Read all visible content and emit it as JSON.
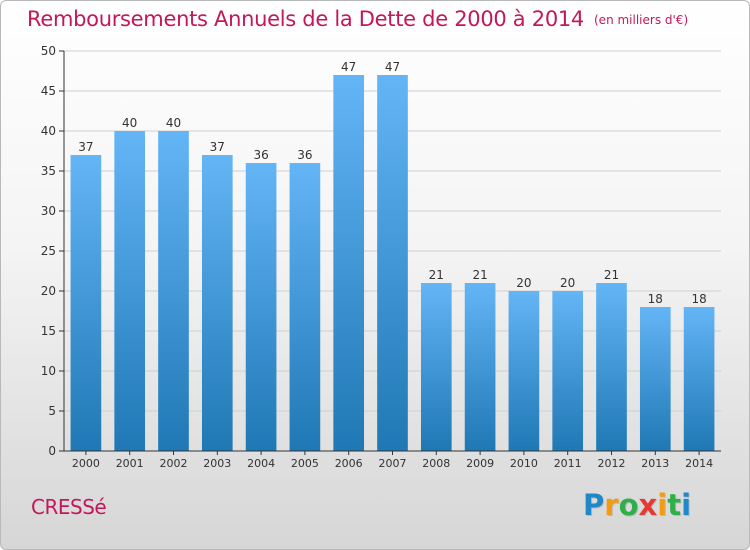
{
  "title": "Remboursements Annuels de la Dette de 2000 à 2014",
  "unit_note": "(en milliers d'€)",
  "commune": "CRESSé",
  "logo": {
    "letters": [
      "P",
      "r",
      "o",
      "x",
      "i",
      "t",
      "i"
    ],
    "colors": [
      "#1e88c9",
      "#f39c12",
      "#2eaf4a",
      "#e53935",
      "#f39c12",
      "#2eaf4a",
      "#1e88c9"
    ]
  },
  "colors": {
    "title": "#c2185b",
    "bar_top": "#64b5f6",
    "bar_bottom": "#1f78b4",
    "axis": "#333333",
    "grid": "#cfcfcf"
  },
  "chart_data": {
    "type": "bar",
    "categories": [
      "2000",
      "2001",
      "2002",
      "2003",
      "2004",
      "2005",
      "2006",
      "2007",
      "2008",
      "2009",
      "2010",
      "2011",
      "2012",
      "2013",
      "2014"
    ],
    "values": [
      37,
      40,
      40,
      37,
      36,
      36,
      47,
      47,
      21,
      21,
      20,
      20,
      21,
      18,
      18
    ],
    "ylim": [
      0,
      50
    ],
    "yticks": [
      0,
      5,
      10,
      15,
      20,
      25,
      30,
      35,
      40,
      45,
      50
    ],
    "grid": true,
    "xlabel": "",
    "ylabel": ""
  }
}
